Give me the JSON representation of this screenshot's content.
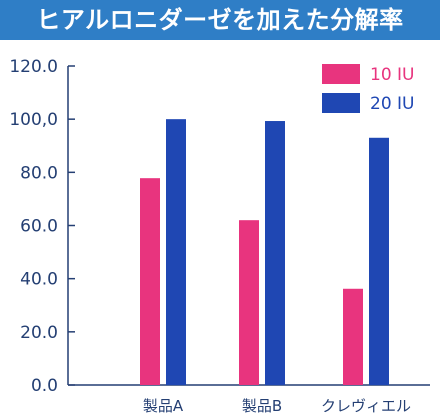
{
  "title": "ヒアルロニダーゼを加えた分解率",
  "colors": {
    "title_bg": "#2f7ec6",
    "series_10iu": "#e8347e",
    "series_20iu": "#1f47b3",
    "axis_text": "#243f73",
    "axis_line": "#243f73"
  },
  "chart_data": {
    "type": "bar",
    "title": "ヒアルロニダーゼを加えた分解率",
    "xlabel": "",
    "ylabel": "",
    "categories": [
      "製品A",
      "製品B",
      "クレヴィエル"
    ],
    "series": [
      {
        "name": "10 IU",
        "color": "#e8347e",
        "values": [
          77.8,
          62.0,
          36.2
        ]
      },
      {
        "name": "20 IU",
        "color": "#1f47b3",
        "values": [
          100.0,
          99.3,
          93.0
        ]
      }
    ],
    "ylim": [
      0,
      120
    ],
    "yticks": [
      0,
      20,
      40,
      60,
      80,
      100,
      120
    ],
    "ytick_labels": [
      "0.0",
      "20.0",
      "40.0",
      "60.0",
      "80.0",
      "100,0",
      "120.0"
    ],
    "grid": false,
    "legend": "top-right"
  }
}
